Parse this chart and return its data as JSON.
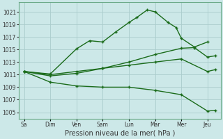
{
  "background_color": "#cce8e8",
  "grid_color": "#aacccc",
  "line_color": "#1a6b1a",
  "title": "Pression niveau de la mer( hPa )",
  "ylim": [
    1004,
    1022.5
  ],
  "yticks": [
    1005,
    1007,
    1009,
    1011,
    1013,
    1015,
    1017,
    1019,
    1021
  ],
  "xlabels": [
    "Sa",
    "Dim",
    "Ven",
    "Sam",
    "Lun",
    "Mar",
    "Mer",
    "Jeu"
  ],
  "xtick_positions": [
    0,
    1,
    2,
    3,
    4,
    5,
    6,
    7
  ],
  "xlim": [
    -0.2,
    7.5
  ],
  "s1_x": [
    0,
    1,
    2,
    2.5,
    3,
    3.5,
    4,
    4.3,
    4.7,
    5,
    5.5,
    5.8,
    6,
    6.5,
    7
  ],
  "s1_y": [
    1011.5,
    1011.1,
    1015.1,
    1016.4,
    1016.2,
    1017.8,
    1019.3,
    1020.1,
    1021.3,
    1021.0,
    1019.3,
    1018.5,
    1016.8,
    1015.4,
    1016.2
  ],
  "s2_x": [
    0,
    1,
    2,
    3,
    4,
    5,
    6,
    6.5,
    7,
    7.3
  ],
  "s2_y": [
    1011.5,
    1010.8,
    1011.2,
    1012.0,
    1013.0,
    1014.2,
    1015.2,
    1015.3,
    1013.8,
    1014.0
  ],
  "s3_x": [
    0,
    1,
    2,
    3,
    4,
    5,
    6,
    7,
    7.3
  ],
  "s3_y": [
    1011.5,
    1011.0,
    1011.5,
    1012.0,
    1012.5,
    1013.0,
    1013.5,
    1011.5,
    1011.8
  ],
  "s4_x": [
    0,
    1,
    2,
    3,
    4,
    5,
    6,
    7,
    7.3
  ],
  "s4_y": [
    1011.5,
    1009.8,
    1009.2,
    1009.0,
    1009.0,
    1008.5,
    1007.8,
    1005.2,
    1005.3
  ]
}
